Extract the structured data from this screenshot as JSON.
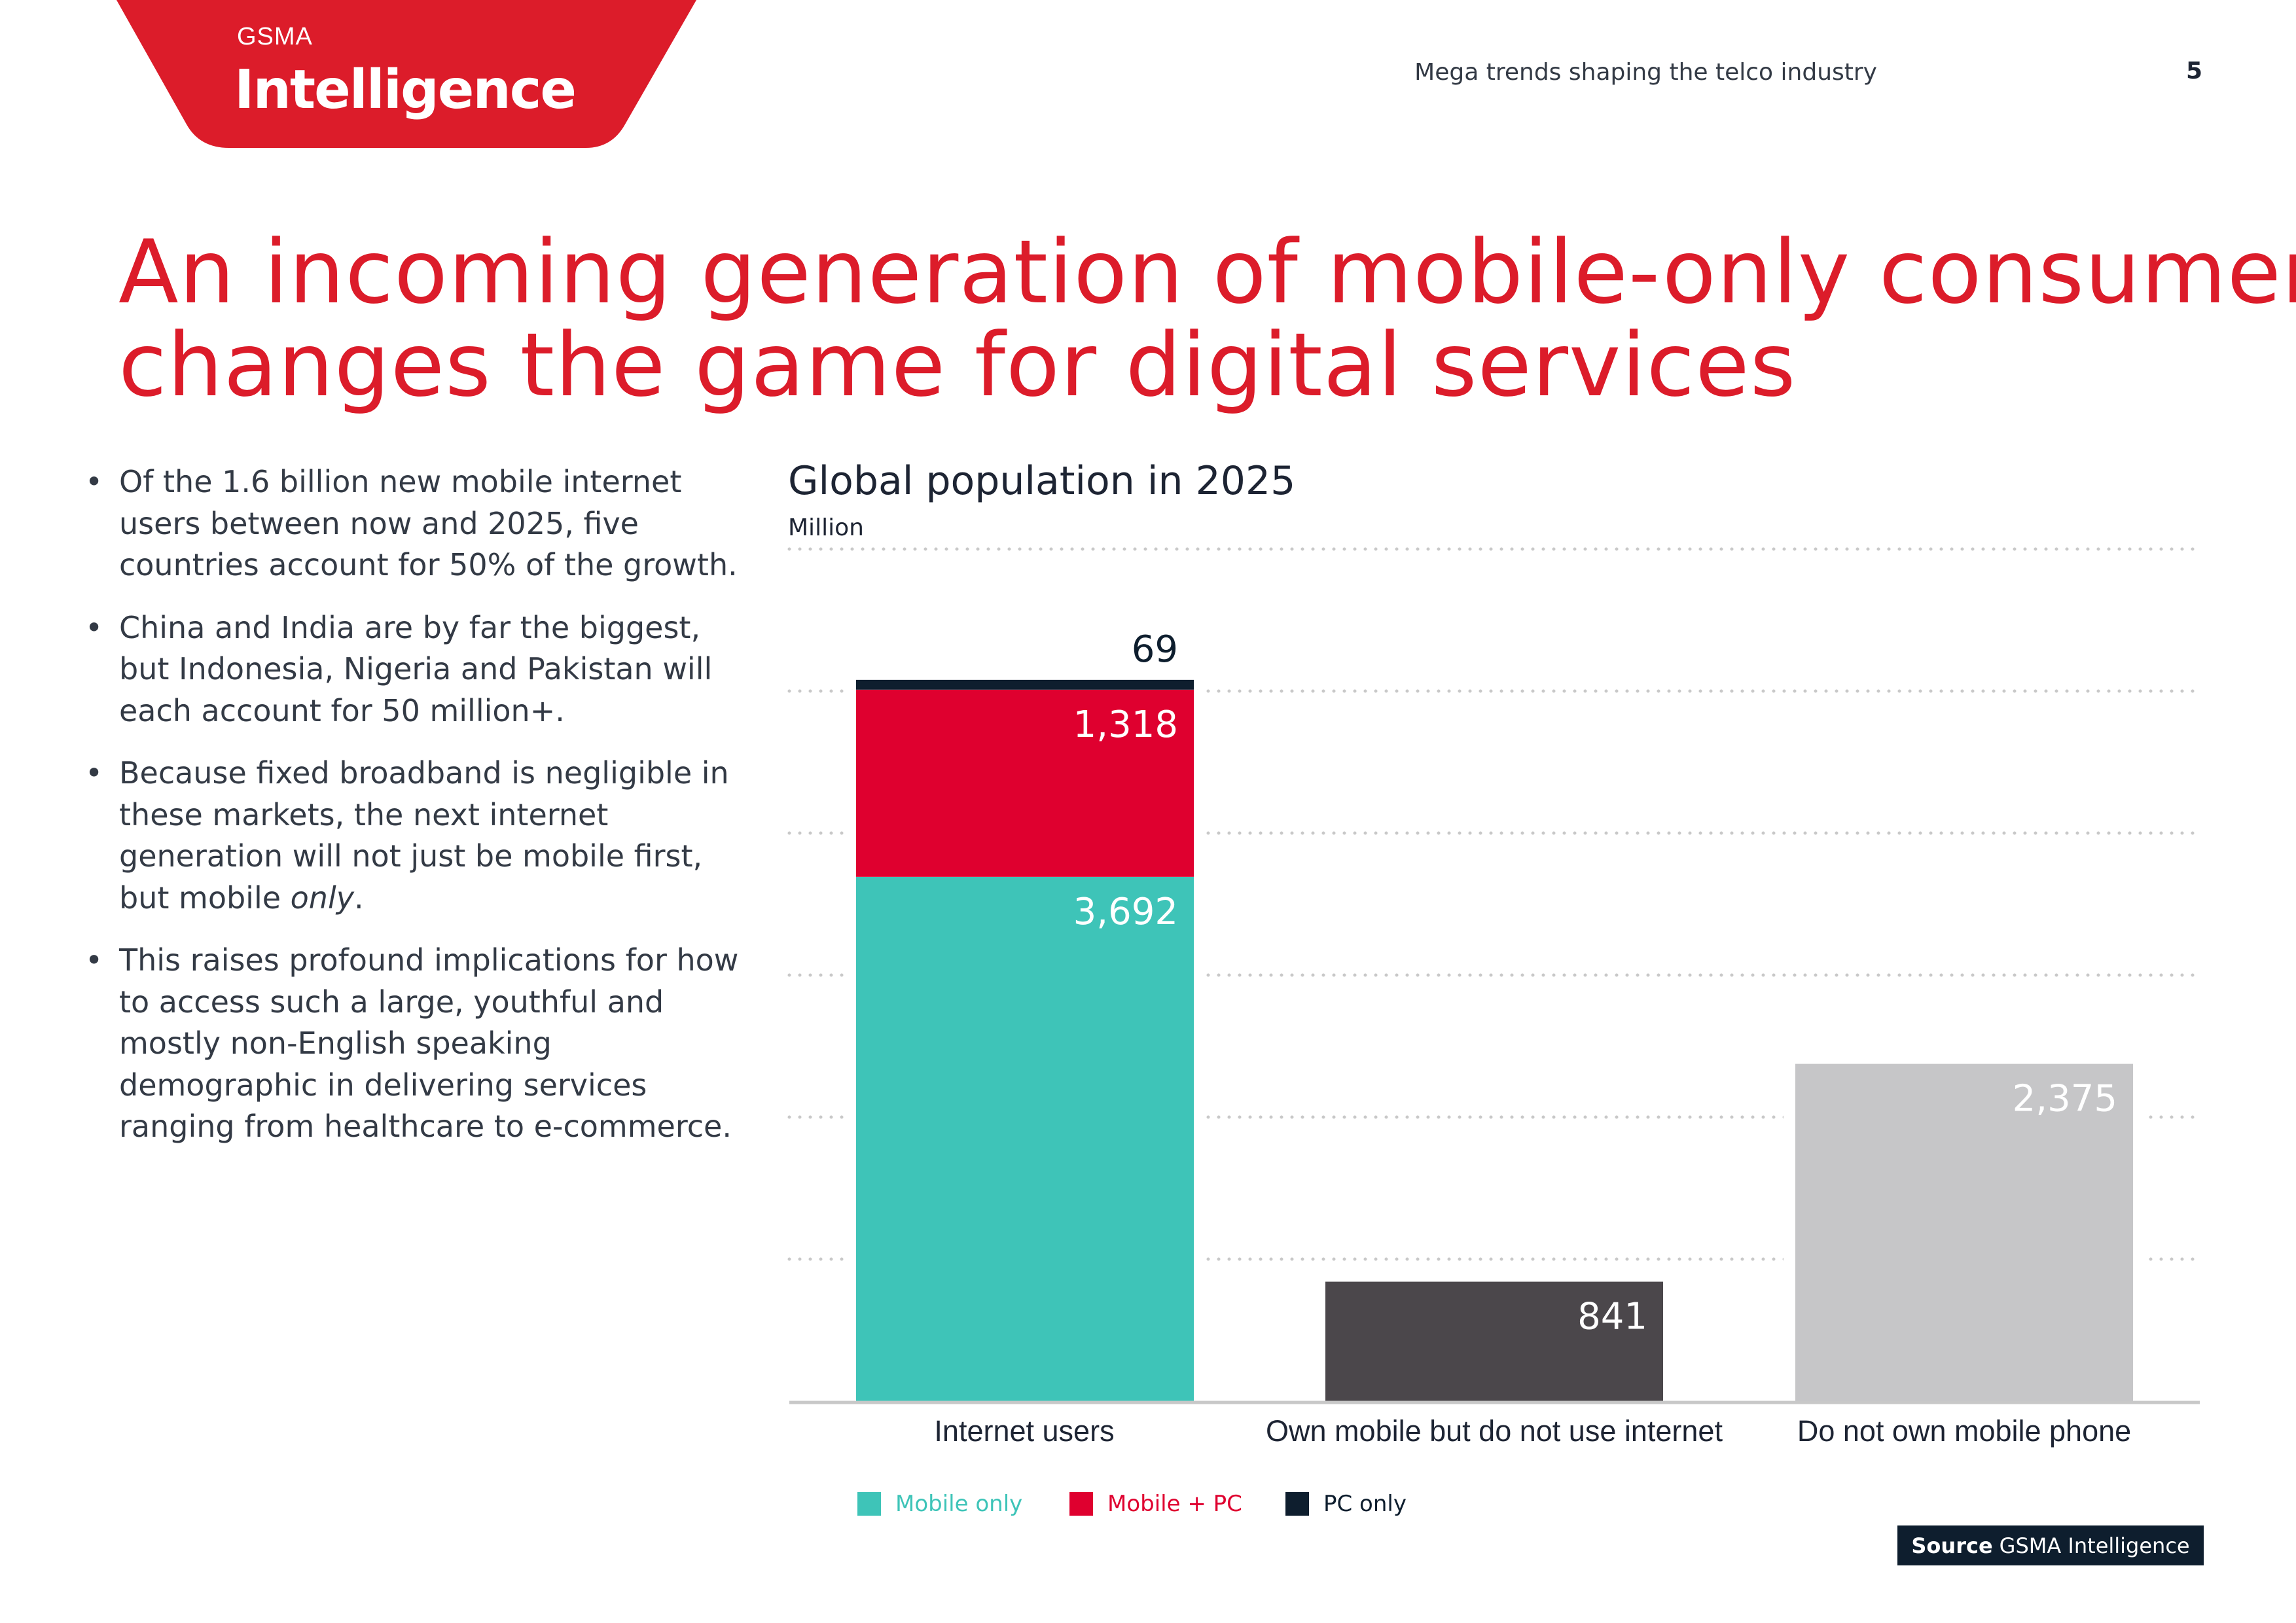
{
  "logo": {
    "brand_small": "GSMA",
    "brand_large": "Intelligence",
    "color": "#dc1c2a"
  },
  "header": {
    "section": "Mega trends shaping the telco industry",
    "page_number": "5"
  },
  "title": {
    "line1": "An incoming generation of mobile-only consumers",
    "line2": "changes the game for digital services"
  },
  "bullets": [
    "Of the 1.6 billion new mobile internet users between now and 2025, five countries account for 50% of the growth.",
    "China and India are by far the biggest, but Indonesia, Nigeria and Pakistan will each account for 50 million+.",
    {
      "before": "Because fixed broadband is negligible in these markets, the next internet generation will not just be mobile first, but mobile ",
      "emph": "only",
      "after": "."
    },
    "This raises profound implications for how to access such a large, youthful and mostly non-English speaking demographic in delivering services ranging from healthcare to e-commerce."
  ],
  "source": {
    "label": "Source",
    "text": "GSMA Intelligence"
  },
  "chart_data": {
    "type": "bar",
    "stacked": true,
    "title": "Global population in 2025",
    "ylabel": "Million",
    "ylim": [
      0,
      6000
    ],
    "grid": true,
    "gridline_style": "dotted",
    "legend_placement": "bottom-left",
    "categories": [
      "Internet users",
      "Own mobile but do not use internet",
      "Do not own mobile phone"
    ],
    "series": [
      {
        "name": "Mobile only",
        "color": "#3ec4b8",
        "values": [
          3692,
          null,
          null
        ],
        "labels": [
          "3,692",
          null,
          null
        ]
      },
      {
        "name": "Mobile + PC",
        "color": "#df002f",
        "values": [
          1318,
          null,
          null
        ],
        "labels": [
          "1,318",
          null,
          null
        ]
      },
      {
        "name": "PC only",
        "color": "#0e1e2e",
        "values": [
          69,
          null,
          null
        ],
        "labels": [
          "69",
          null,
          null
        ]
      }
    ],
    "other_bars": [
      {
        "category": "Own mobile but do not use internet",
        "value": 841,
        "label": "841",
        "color": "#4b474b"
      },
      {
        "category": "Do not own mobile phone",
        "value": 2375,
        "label": "2,375",
        "color": "#c6c6c8"
      }
    ]
  }
}
